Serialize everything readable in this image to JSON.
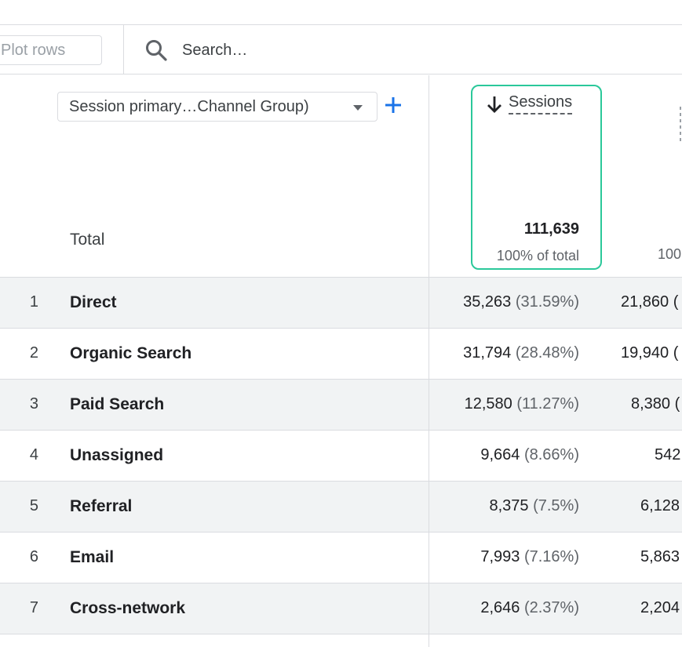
{
  "toolbar": {
    "plot_rows_label": "Plot rows",
    "search_placeholder": "Search…"
  },
  "table": {
    "dimension_selector": "Session primary…Channel Group)",
    "total_label": "Total",
    "sessions": {
      "title": "Sessions",
      "sort": "descending",
      "total_value": "111,639",
      "total_pct": "100% of total"
    },
    "next_column": {
      "total_pct": "100"
    },
    "rows": [
      {
        "index": "1",
        "name": "Direct",
        "value": "35,263",
        "pct": "(31.59%)",
        "next": "21,860 ("
      },
      {
        "index": "2",
        "name": "Organic Search",
        "value": "31,794",
        "pct": "(28.48%)",
        "next": "19,940 ("
      },
      {
        "index": "3",
        "name": "Paid Search",
        "value": "12,580",
        "pct": "(11.27%)",
        "next": "8,380 ("
      },
      {
        "index": "4",
        "name": "Unassigned",
        "value": "9,664",
        "pct": "(8.66%)",
        "next": "542"
      },
      {
        "index": "5",
        "name": "Referral",
        "value": "8,375",
        "pct": "(7.5%)",
        "next": "6,128"
      },
      {
        "index": "6",
        "name": "Email",
        "value": "7,993",
        "pct": "(7.16%)",
        "next": "5,863"
      },
      {
        "index": "7",
        "name": "Cross-network",
        "value": "2,646",
        "pct": "(2.37%)",
        "next": "2,204"
      }
    ]
  },
  "colors": {
    "highlight_border": "#2bc89a",
    "add_icon": "#1a73e8",
    "row_alt_bg": "#f1f3f4"
  }
}
